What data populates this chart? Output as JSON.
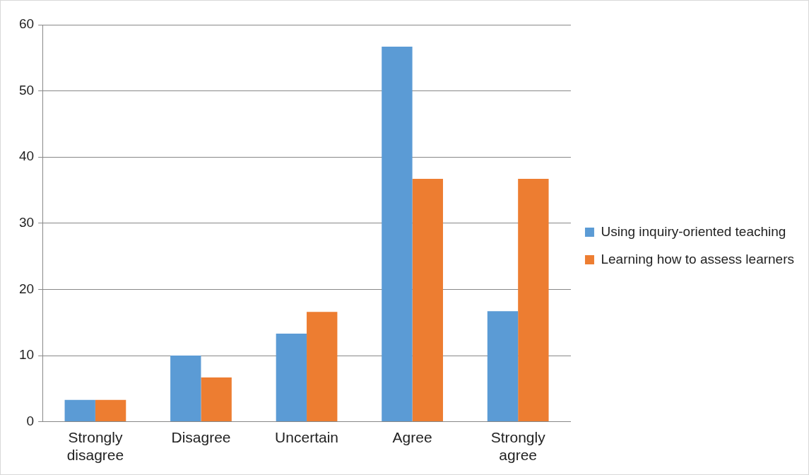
{
  "chart_data": {
    "type": "bar",
    "categories": [
      "Strongly disagree",
      "Disagree",
      "Uncertain",
      "Agree",
      "Strongly agree"
    ],
    "series": [
      {
        "name": "Using inquiry-oriented teaching",
        "color": "#5b9bd5",
        "values": [
          3.3,
          10,
          13.3,
          56.7,
          16.7
        ]
      },
      {
        "name": "Learning how to assess learners",
        "color": "#ed7d31",
        "values": [
          3.3,
          6.7,
          16.6,
          36.7,
          36.7
        ]
      }
    ],
    "ylim": [
      0,
      60
    ],
    "yticks": [
      0,
      10,
      20,
      30,
      40,
      50,
      60
    ],
    "grid": "y",
    "legend": "right"
  }
}
